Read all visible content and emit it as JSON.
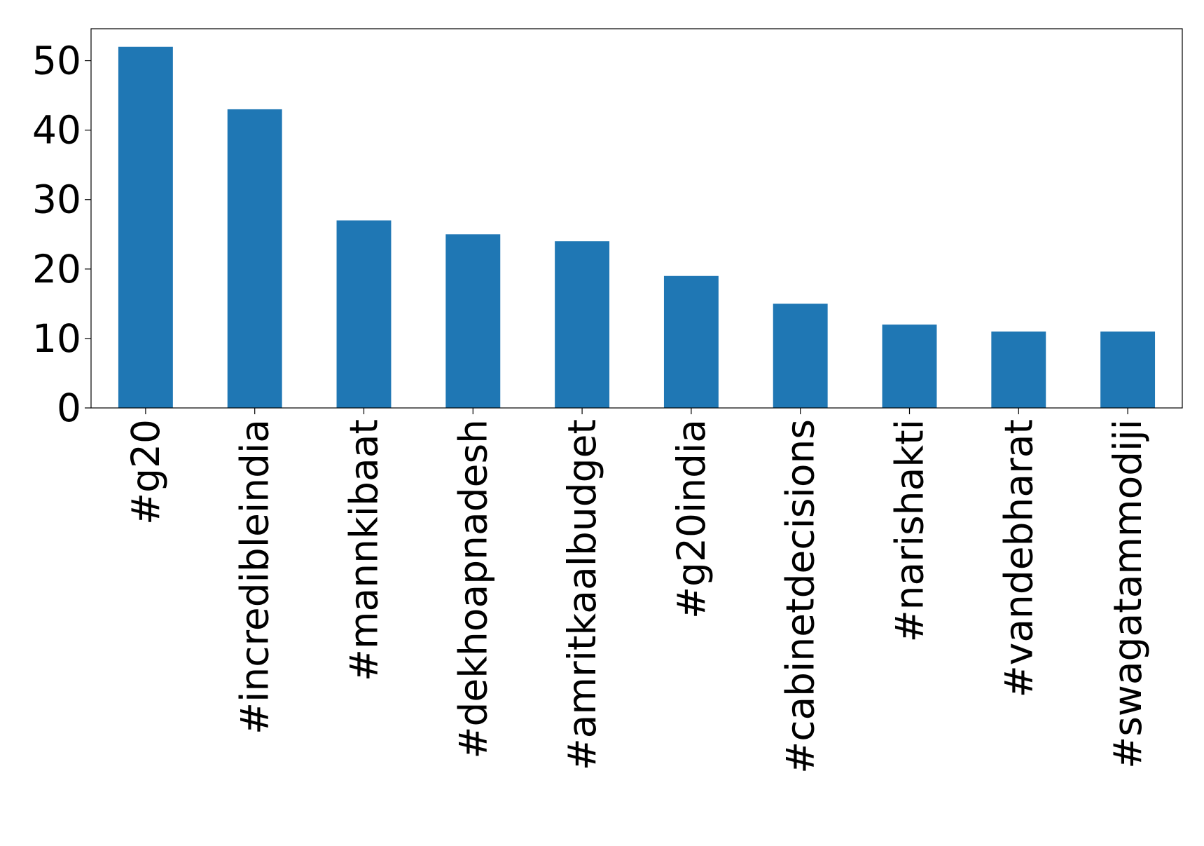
{
  "chart_data": {
    "type": "bar",
    "categories": [
      "#g20",
      "#incredibleindia",
      "#mannkibaat",
      "#dekhoapnadesh",
      "#amritkaalbudget",
      "#g20india",
      "#cabinetdecisions",
      "#narishakti",
      "#vandebharat",
      "#swagatammodiji"
    ],
    "values": [
      52,
      43,
      27,
      25,
      24,
      19,
      15,
      12,
      11,
      11
    ],
    "color": "#1f77b4",
    "ylim": [
      0,
      54.6
    ],
    "yticks": [
      0,
      10,
      20,
      30,
      40,
      50
    ],
    "grid": false
  }
}
